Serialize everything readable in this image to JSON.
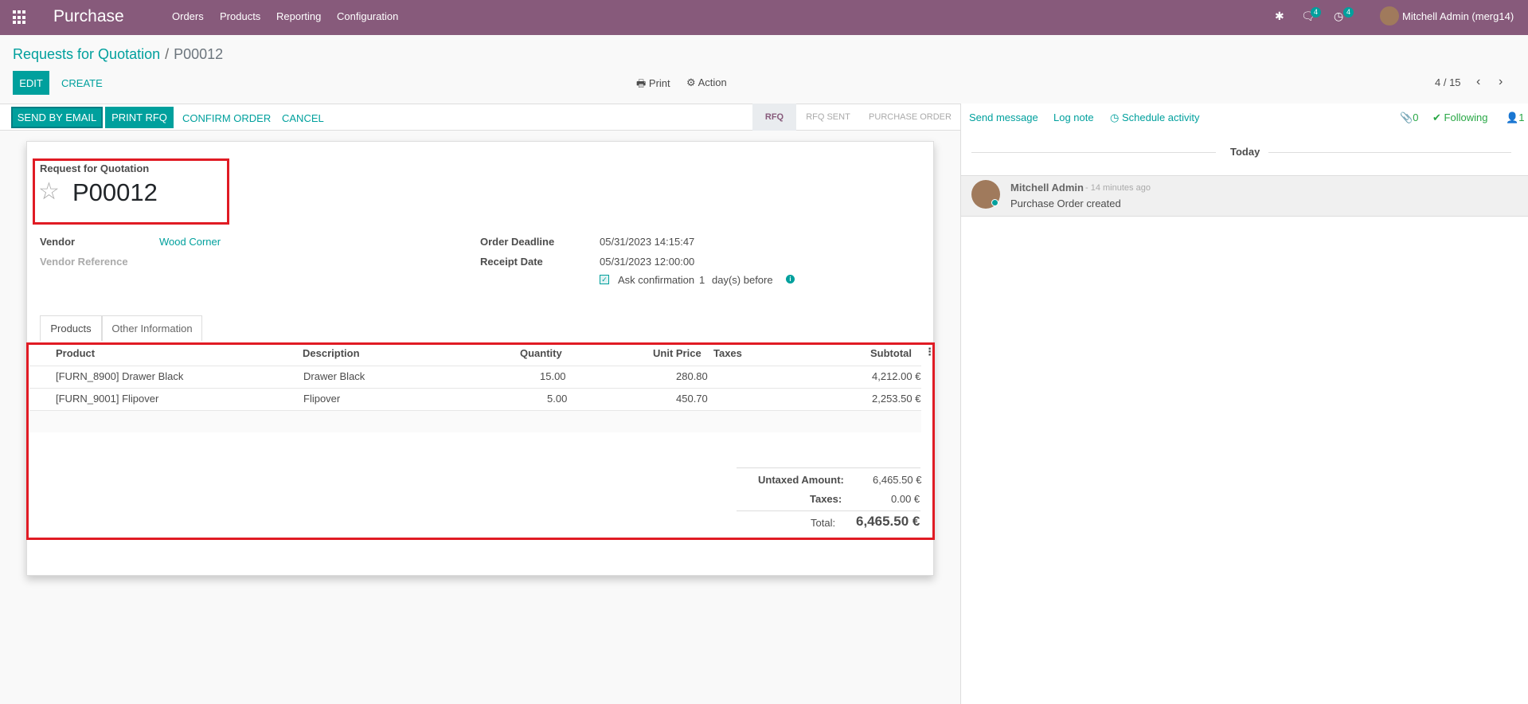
{
  "navbar": {
    "app_name": "Purchase",
    "menu": [
      "Orders",
      "Products",
      "Reporting",
      "Configuration"
    ],
    "messages_count": "4",
    "activities_count": "4",
    "user": "Mitchell Admin (merg14)"
  },
  "breadcrumb": {
    "parent": "Requests for Quotation",
    "current": "P00012"
  },
  "buttons": {
    "edit": "EDIT",
    "create": "CREATE",
    "print": "Print",
    "action": "Action"
  },
  "pager": {
    "value": "4 / 15"
  },
  "header_buttons": {
    "send_email": "SEND BY EMAIL",
    "print_rfq": "PRINT RFQ",
    "confirm": "CONFIRM ORDER",
    "cancel": "CANCEL"
  },
  "status": {
    "steps": [
      "RFQ",
      "RFQ SENT",
      "PURCHASE ORDER"
    ],
    "active": "RFQ"
  },
  "form": {
    "doc_label": "Request for Quotation",
    "name": "P00012",
    "vendor_label": "Vendor",
    "vendor": "Wood Corner",
    "vendor_ref_label": "Vendor Reference",
    "deadline_label": "Order Deadline",
    "deadline": "05/31/2023 14:15:47",
    "receipt_label": "Receipt Date",
    "receipt": "05/31/2023 12:00:00",
    "ask_confirmation": "Ask confirmation",
    "confirm_days": "1",
    "days_before": "day(s) before"
  },
  "tabs": [
    "Products",
    "Other Information"
  ],
  "lines": {
    "headers": [
      "Product",
      "Description",
      "Quantity",
      "Unit Price",
      "Taxes",
      "Subtotal"
    ],
    "rows": [
      {
        "product": "[FURN_8900] Drawer Black",
        "description": "Drawer Black",
        "qty": "15.00",
        "price": "280.80",
        "taxes": "",
        "subtotal": "4,212.00 €"
      },
      {
        "product": "[FURN_9001] Flipover",
        "description": "Flipover",
        "qty": "5.00",
        "price": "450.70",
        "taxes": "",
        "subtotal": "2,253.50 €"
      }
    ]
  },
  "totals": {
    "untaxed_label": "Untaxed Amount:",
    "untaxed": "6,465.50 €",
    "taxes_label": "Taxes:",
    "taxes": "0.00 €",
    "total_label": "Total:",
    "total": "6,465.50 €"
  },
  "chatter": {
    "send_message": "Send message",
    "log_note": "Log note",
    "schedule": "Schedule activity",
    "attachments": "0",
    "following": "Following",
    "followers": "1",
    "today": "Today",
    "author": "Mitchell Admin",
    "time": "- 14 minutes ago",
    "body": "Purchase Order created"
  },
  "colors": {
    "brand": "#875a7b",
    "accent": "#00a09d",
    "highlight": "#e01b24"
  }
}
